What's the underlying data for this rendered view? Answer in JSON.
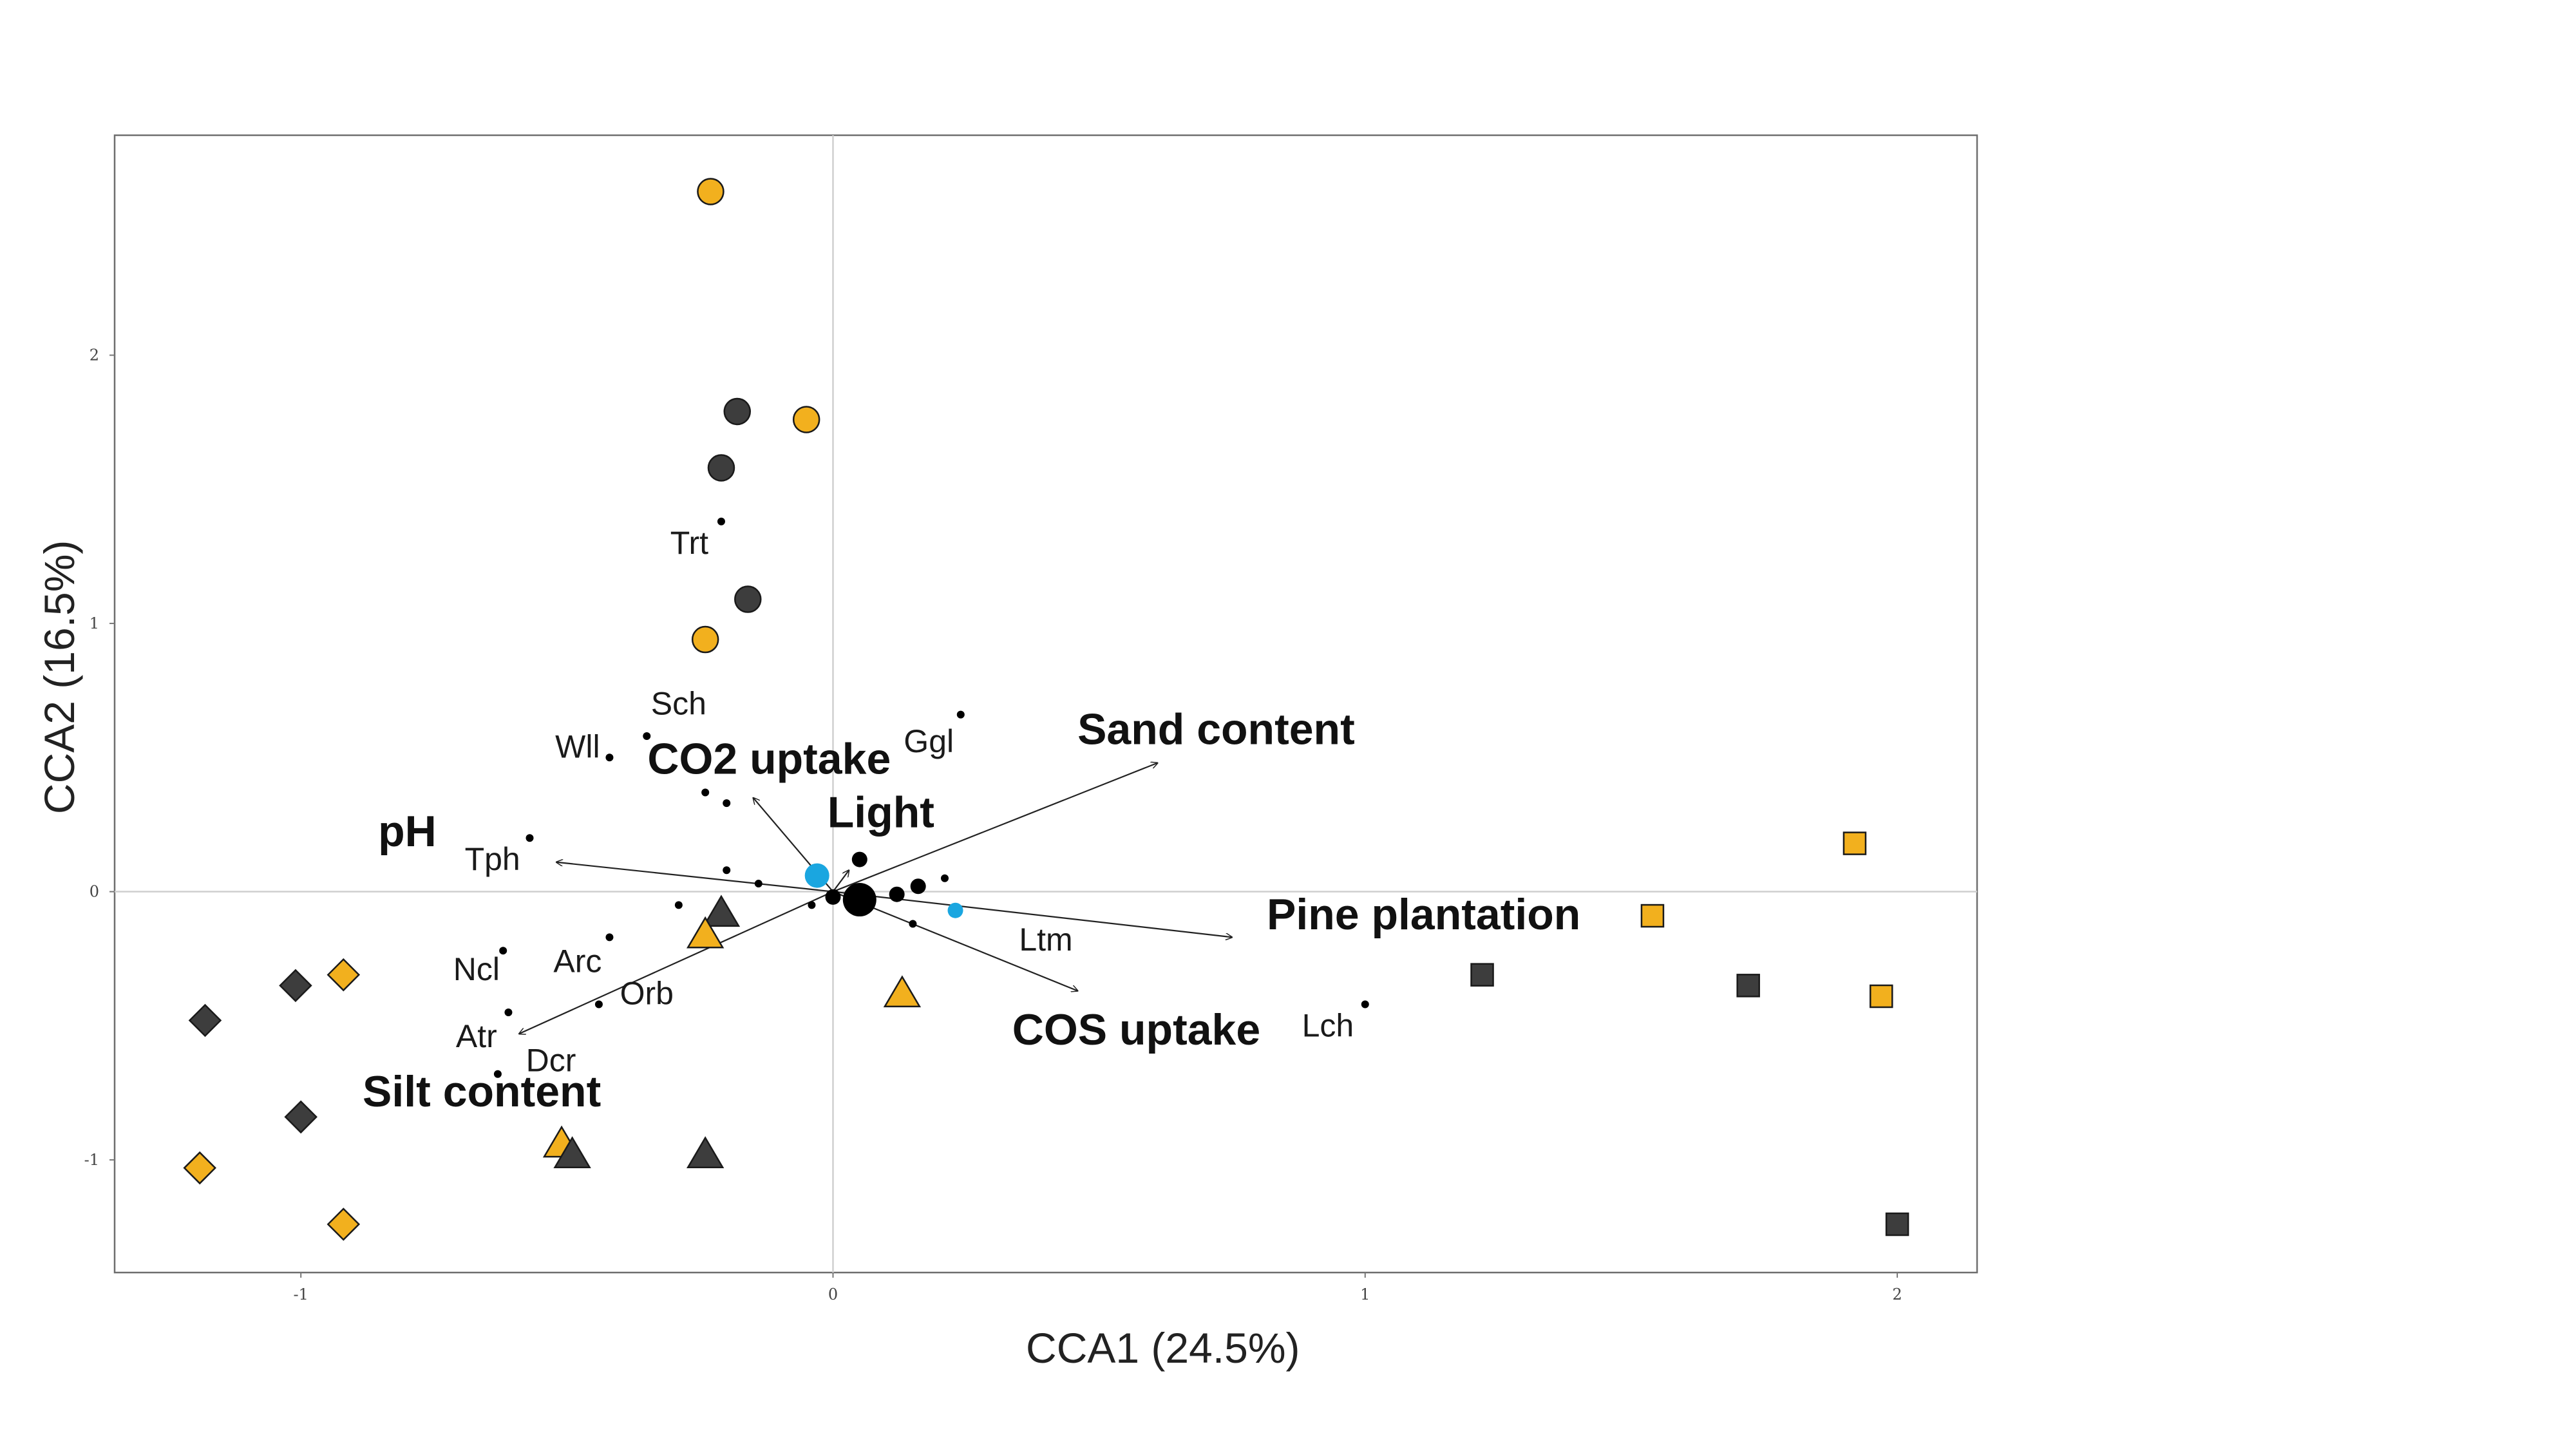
{
  "chart_data": {
    "type": "scatter",
    "subtype": "CCA biplot",
    "xlabel": "CCA1 (24.5%)",
    "ylabel": "CCA2 (16.5%)",
    "xlim": [
      -1.35,
      2.15
    ],
    "ylim": [
      -1.42,
      2.82
    ],
    "x_ticks": [
      -1,
      0,
      1,
      2
    ],
    "y_ticks": [
      -1,
      0,
      1,
      2
    ],
    "x_tick_labels": [
      "-1",
      "0",
      "1",
      "2"
    ],
    "y_tick_labels": [
      "-1",
      "0",
      "1",
      "2"
    ],
    "zero_lines": true,
    "colors": {
      "orange": "#f2b01e",
      "dark": "#3d3d3d",
      "blue": "#1aa6e0",
      "black": "#000000"
    },
    "sites": [
      {
        "shape": "circle",
        "color": "orange",
        "x": -0.23,
        "y": 2.61
      },
      {
        "shape": "circle",
        "color": "orange",
        "x": -0.05,
        "y": 1.76
      },
      {
        "shape": "circle",
        "color": "dark",
        "x": -0.18,
        "y": 1.79
      },
      {
        "shape": "circle",
        "color": "dark",
        "x": -0.21,
        "y": 1.58
      },
      {
        "shape": "circle",
        "color": "dark",
        "x": -0.16,
        "y": 1.09
      },
      {
        "shape": "circle",
        "color": "orange",
        "x": -0.24,
        "y": 0.94
      },
      {
        "shape": "triangle",
        "color": "dark",
        "x": -0.21,
        "y": -0.08
      },
      {
        "shape": "triangle",
        "color": "orange",
        "x": -0.24,
        "y": -0.16
      },
      {
        "shape": "triangle",
        "color": "orange",
        "x": 0.13,
        "y": -0.38
      },
      {
        "shape": "triangle",
        "color": "orange",
        "x": -0.51,
        "y": -0.94
      },
      {
        "shape": "triangle",
        "color": "dark",
        "x": -0.49,
        "y": -0.98
      },
      {
        "shape": "triangle",
        "color": "dark",
        "x": -0.24,
        "y": -0.98
      },
      {
        "shape": "diamond",
        "color": "dark",
        "x": -1.01,
        "y": -0.35
      },
      {
        "shape": "diamond",
        "color": "orange",
        "x": -0.92,
        "y": -0.31
      },
      {
        "shape": "diamond",
        "color": "dark",
        "x": -1.18,
        "y": -0.48
      },
      {
        "shape": "diamond",
        "color": "dark",
        "x": -1.0,
        "y": -0.84
      },
      {
        "shape": "diamond",
        "color": "orange",
        "x": -1.19,
        "y": -1.03
      },
      {
        "shape": "diamond",
        "color": "orange",
        "x": -0.92,
        "y": -1.24
      },
      {
        "shape": "square",
        "color": "orange",
        "x": 1.92,
        "y": 0.18
      },
      {
        "shape": "square",
        "color": "orange",
        "x": 1.54,
        "y": -0.09
      },
      {
        "shape": "square",
        "color": "dark",
        "x": 1.22,
        "y": -0.31
      },
      {
        "shape": "square",
        "color": "dark",
        "x": 1.72,
        "y": -0.35
      },
      {
        "shape": "square",
        "color": "orange",
        "x": 1.97,
        "y": -0.39
      },
      {
        "shape": "square",
        "color": "dark",
        "x": 2.0,
        "y": -1.24
      }
    ],
    "centroids": [
      {
        "color": "blue",
        "x": -0.03,
        "y": 0.06,
        "size": "medium"
      },
      {
        "color": "blue",
        "x": 0.23,
        "y": -0.07,
        "size": "small"
      },
      {
        "color": "black",
        "x": 0.05,
        "y": 0.12,
        "size": "small"
      },
      {
        "color": "black",
        "x": 0.0,
        "y": -0.02,
        "size": "small"
      },
      {
        "color": "black",
        "x": 0.05,
        "y": -0.03,
        "size": "large"
      },
      {
        "color": "black",
        "x": 0.12,
        "y": -0.01,
        "size": "small"
      },
      {
        "color": "black",
        "x": 0.16,
        "y": 0.02,
        "size": "small"
      }
    ],
    "species_points": [
      {
        "x": -0.21,
        "y": 1.38
      },
      {
        "x": -0.35,
        "y": 0.58
      },
      {
        "x": -0.42,
        "y": 0.5
      },
      {
        "x": 0.24,
        "y": 0.66
      },
      {
        "x": -0.24,
        "y": 0.37
      },
      {
        "x": -0.2,
        "y": 0.33
      },
      {
        "x": -0.57,
        "y": 0.2
      },
      {
        "x": -0.2,
        "y": 0.08
      },
      {
        "x": -0.14,
        "y": 0.03
      },
      {
        "x": -0.29,
        "y": -0.05
      },
      {
        "x": -0.42,
        "y": -0.17
      },
      {
        "x": -0.62,
        "y": -0.22
      },
      {
        "x": -0.61,
        "y": -0.45
      },
      {
        "x": -0.44,
        "y": -0.42
      },
      {
        "x": -0.63,
        "y": -0.68
      },
      {
        "x": 0.21,
        "y": 0.05
      },
      {
        "x": 0.15,
        "y": -0.12
      },
      {
        "x": -0.04,
        "y": -0.05
      },
      {
        "x": 1.0,
        "y": -0.42
      }
    ],
    "species_labels": [
      {
        "text": "Trt",
        "x": -0.27,
        "y": 1.26
      },
      {
        "text": "Sch",
        "x": -0.29,
        "y": 0.66
      },
      {
        "text": "Wll",
        "x": -0.48,
        "y": 0.5
      },
      {
        "text": "Ggl",
        "x": 0.18,
        "y": 0.52
      },
      {
        "text": "Tph",
        "x": -0.64,
        "y": 0.08
      },
      {
        "text": "Arc",
        "x": -0.48,
        "y": -0.3
      },
      {
        "text": "Ncl",
        "x": -0.67,
        "y": -0.33
      },
      {
        "text": "Orb",
        "x": -0.35,
        "y": -0.42
      },
      {
        "text": "Atr",
        "x": -0.67,
        "y": -0.58
      },
      {
        "text": "Dcr",
        "x": -0.53,
        "y": -0.67
      },
      {
        "text": "Ltm",
        "x": 0.4,
        "y": -0.22
      },
      {
        "text": "Lch",
        "x": 0.93,
        "y": -0.54
      }
    ],
    "env_vectors": [
      {
        "label": "Sand content",
        "x": 0.61,
        "y": 0.48,
        "label_x": 0.72,
        "label_y": 0.55
      },
      {
        "label": "CO2 uptake",
        "x": -0.15,
        "y": 0.35,
        "label_x": -0.12,
        "label_y": 0.44
      },
      {
        "label": "Light",
        "x": 0.03,
        "y": 0.08,
        "label_x": 0.09,
        "label_y": 0.24
      },
      {
        "label": "pH",
        "x": -0.52,
        "y": 0.11,
        "label_x": -0.8,
        "label_y": 0.17
      },
      {
        "label": "Pine plantation",
        "x": 0.75,
        "y": -0.17,
        "label_x": 1.11,
        "label_y": -0.14
      },
      {
        "label": "COS uptake",
        "x": 0.46,
        "y": -0.37,
        "label_x": 0.57,
        "label_y": -0.57
      },
      {
        "label": "Silt content",
        "x": -0.59,
        "y": -0.53,
        "label_x": -0.66,
        "label_y": -0.8
      }
    ]
  }
}
